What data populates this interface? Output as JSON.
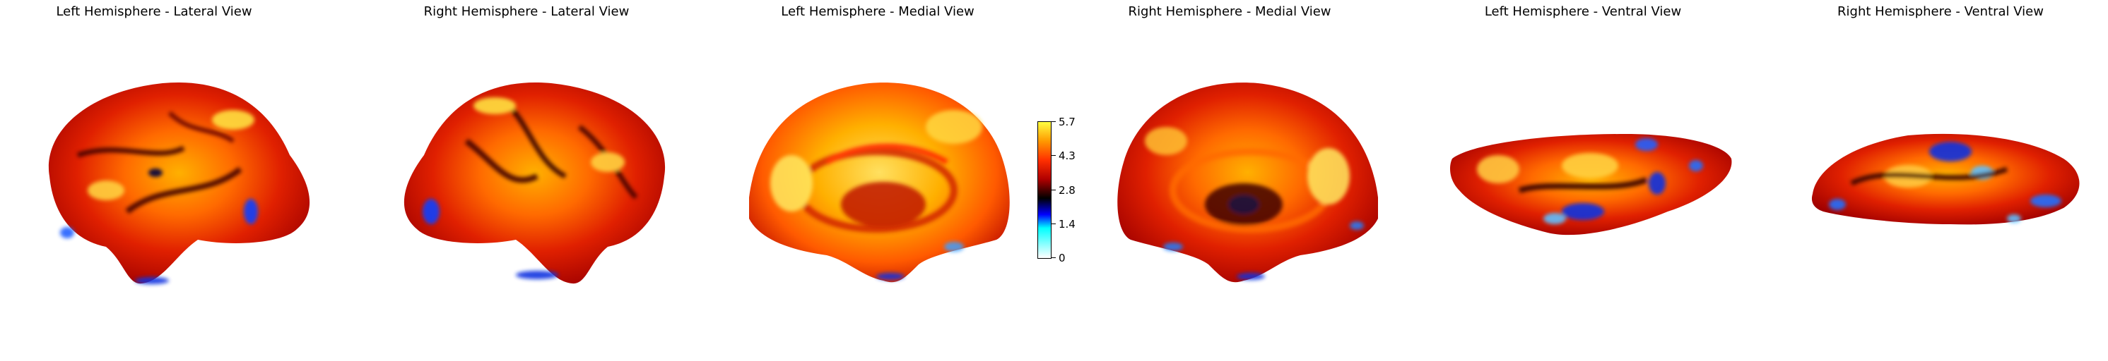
{
  "panels": [
    {
      "title": "Left Hemisphere - Lateral View"
    },
    {
      "title": "Right Hemisphere - Lateral View"
    },
    {
      "title": "Left Hemisphere - Medial View"
    },
    {
      "title": "Right Hemisphere - Medial View"
    },
    {
      "title": "Left Hemisphere - Ventral View"
    },
    {
      "title": "Right Hemisphere - Ventral View"
    }
  ],
  "colorbar": {
    "ticks": [
      "5.7",
      "4.3",
      "2.8",
      "1.4",
      "0"
    ],
    "colors": [
      "#ffffff",
      "#00ffff",
      "#0000ff",
      "#000000",
      "#b00000",
      "#ff3000",
      "#ff9a00",
      "#ffff40"
    ]
  }
}
